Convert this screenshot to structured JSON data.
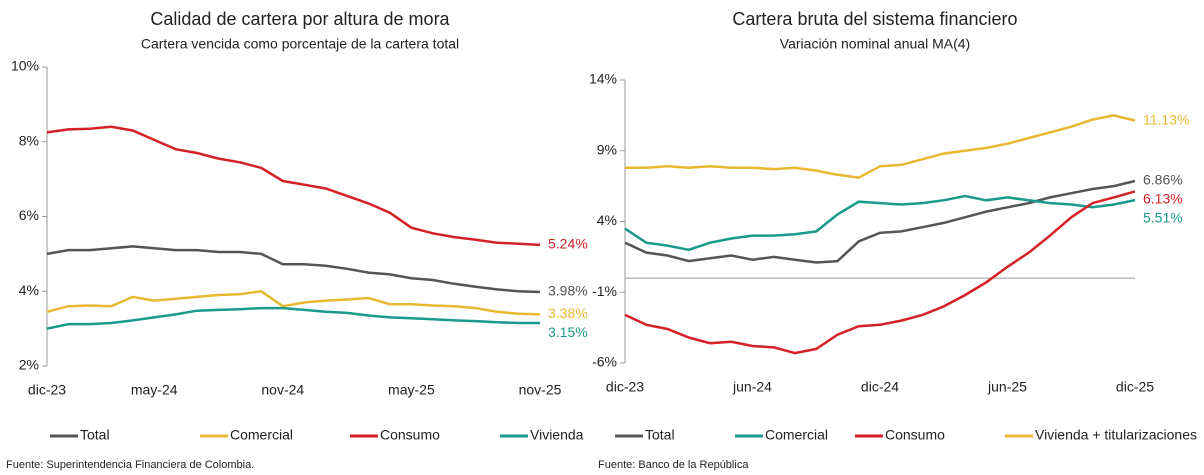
{
  "chart_data": [
    {
      "type": "line",
      "title": "Calidad de cartera por altura de mora",
      "subtitle": "Cartera vencida como porcentaje de la cartera total",
      "categories": [
        "dic-23",
        null,
        null,
        null,
        null,
        "may-24",
        null,
        null,
        null,
        null,
        null,
        "nov-24",
        null,
        null,
        null,
        null,
        null,
        "may-25",
        null,
        null,
        null,
        null,
        null,
        "nov-25"
      ],
      "ylim": [
        2,
        10
      ],
      "yticks": [
        {
          "value": 2,
          "label": "2%"
        },
        {
          "value": 4,
          "label": "4%"
        },
        {
          "value": 6,
          "label": "6%"
        },
        {
          "value": 8,
          "label": "8%"
        },
        {
          "value": 10,
          "label": "10%"
        }
      ],
      "series": [
        {
          "name": "Total",
          "color": "#555555",
          "values": [
            5.0,
            5.1,
            5.1,
            5.15,
            5.2,
            5.15,
            5.1,
            5.1,
            5.05,
            5.05,
            5.0,
            4.72,
            4.72,
            4.68,
            4.6,
            4.5,
            4.45,
            4.35,
            4.3,
            4.2,
            4.12,
            4.05,
            4.0,
            3.98
          ],
          "value_labels": [
            null,
            null,
            null,
            null,
            null,
            null,
            null,
            null,
            null,
            null,
            null,
            null,
            null,
            null,
            null,
            null,
            null,
            null,
            null,
            null,
            null,
            null,
            null,
            "3.98%"
          ]
        },
        {
          "name": "Comercial",
          "color": "#e8b830",
          "values": [
            3.45,
            3.6,
            3.62,
            3.6,
            3.85,
            3.75,
            3.8,
            3.85,
            3.9,
            3.92,
            4.0,
            3.6,
            3.7,
            3.75,
            3.78,
            3.82,
            3.65,
            3.65,
            3.62,
            3.6,
            3.55,
            3.45,
            3.4,
            3.38
          ],
          "value_labels": [
            null,
            null,
            null,
            null,
            null,
            null,
            null,
            null,
            null,
            null,
            null,
            null,
            null,
            null,
            null,
            null,
            null,
            null,
            null,
            null,
            null,
            null,
            null,
            "3.38%"
          ]
        },
        {
          "name": "Consumo",
          "color": "#d42027",
          "values": [
            8.25,
            8.33,
            8.35,
            8.4,
            8.3,
            8.05,
            7.8,
            7.7,
            7.55,
            7.45,
            7.3,
            6.95,
            6.85,
            6.75,
            6.55,
            6.35,
            6.1,
            5.7,
            5.55,
            5.45,
            5.38,
            5.3,
            5.27,
            5.24
          ],
          "value_labels": [
            null,
            null,
            null,
            null,
            null,
            null,
            null,
            null,
            null,
            null,
            null,
            null,
            null,
            null,
            null,
            null,
            null,
            null,
            null,
            null,
            null,
            null,
            null,
            "5.24%"
          ]
        },
        {
          "name": "Vivienda",
          "color": "#1a9a8a",
          "values": [
            3.0,
            3.12,
            3.12,
            3.15,
            3.22,
            3.3,
            3.38,
            3.48,
            3.5,
            3.52,
            3.55,
            3.55,
            3.5,
            3.45,
            3.42,
            3.35,
            3.3,
            3.28,
            3.25,
            3.22,
            3.2,
            3.17,
            3.15,
            3.15
          ],
          "value_labels": [
            null,
            null,
            null,
            null,
            null,
            null,
            null,
            null,
            null,
            null,
            null,
            null,
            null,
            null,
            null,
            null,
            null,
            null,
            null,
            null,
            null,
            null,
            null,
            "3.15%"
          ]
        }
      ],
      "source": "Fuente: Superintendencia Financiera de Colombia."
    },
    {
      "type": "line",
      "title": "Cartera bruta del sistema financiero",
      "subtitle": "Variación nominal anual MA(4)",
      "categories": [
        "dic-23",
        null,
        null,
        null,
        null,
        null,
        "jun-24",
        null,
        null,
        null,
        null,
        null,
        "dic-24",
        null,
        null,
        null,
        null,
        null,
        "jun-25",
        null,
        null,
        null,
        null,
        null,
        "dic-25"
      ],
      "ylim": [
        -6,
        14
      ],
      "yticks": [
        {
          "value": -6,
          "label": "-6%"
        },
        {
          "value": -1,
          "label": "-1%"
        },
        {
          "value": 4,
          "label": "4%"
        },
        {
          "value": 9,
          "label": "9%"
        },
        {
          "value": 14,
          "label": "14%"
        }
      ],
      "zero_line": true,
      "series": [
        {
          "name": "Total",
          "color": "#555555",
          "values": [
            2.5,
            1.8,
            1.6,
            1.2,
            1.4,
            1.6,
            1.3,
            1.5,
            1.3,
            1.1,
            1.2,
            2.6,
            3.2,
            3.3,
            3.6,
            3.9,
            4.3,
            4.7,
            5.0,
            5.3,
            5.7,
            6.0,
            6.3,
            6.5,
            6.86
          ],
          "value_labels": [
            null,
            null,
            null,
            null,
            null,
            null,
            null,
            null,
            null,
            null,
            null,
            null,
            null,
            null,
            null,
            null,
            null,
            null,
            null,
            null,
            null,
            null,
            null,
            null,
            "6.86%"
          ]
        },
        {
          "name": "Comercial",
          "color": "#1a9a8a",
          "values": [
            3.5,
            2.5,
            2.3,
            2.0,
            2.5,
            2.8,
            3.0,
            3.0,
            3.1,
            3.3,
            4.5,
            5.4,
            5.3,
            5.2,
            5.3,
            5.5,
            5.8,
            5.5,
            5.7,
            5.5,
            5.3,
            5.2,
            5.0,
            5.2,
            5.51
          ],
          "value_labels": [
            null,
            null,
            null,
            null,
            null,
            null,
            null,
            null,
            null,
            null,
            null,
            null,
            null,
            null,
            null,
            null,
            null,
            null,
            null,
            null,
            null,
            null,
            null,
            null,
            "5.51%"
          ]
        },
        {
          "name": "Consumo",
          "color": "#d42027",
          "values": [
            -2.6,
            -3.3,
            -3.6,
            -4.2,
            -4.6,
            -4.5,
            -4.8,
            -4.9,
            -5.3,
            -5.0,
            -4.0,
            -3.4,
            -3.3,
            -3.0,
            -2.6,
            -2.0,
            -1.2,
            -0.3,
            0.8,
            1.8,
            3.0,
            4.3,
            5.3,
            5.7,
            6.13
          ],
          "value_labels": [
            null,
            null,
            null,
            null,
            null,
            null,
            null,
            null,
            null,
            null,
            null,
            null,
            null,
            null,
            null,
            null,
            null,
            null,
            null,
            null,
            null,
            null,
            null,
            null,
            "6.13%"
          ]
        },
        {
          "name": "Vivienda + titularizaciones",
          "color": "#e8b830",
          "values": [
            7.8,
            7.8,
            7.9,
            7.8,
            7.9,
            7.8,
            7.8,
            7.7,
            7.8,
            7.6,
            7.3,
            7.1,
            7.9,
            8.0,
            8.4,
            8.8,
            9.0,
            9.2,
            9.5,
            9.9,
            10.3,
            10.7,
            11.2,
            11.5,
            11.13
          ],
          "value_labels": [
            null,
            null,
            null,
            null,
            null,
            null,
            null,
            null,
            null,
            null,
            null,
            null,
            null,
            null,
            null,
            null,
            null,
            null,
            null,
            null,
            null,
            null,
            null,
            null,
            "11.13%"
          ]
        }
      ],
      "source": "Fuente: Banco de la República"
    }
  ]
}
